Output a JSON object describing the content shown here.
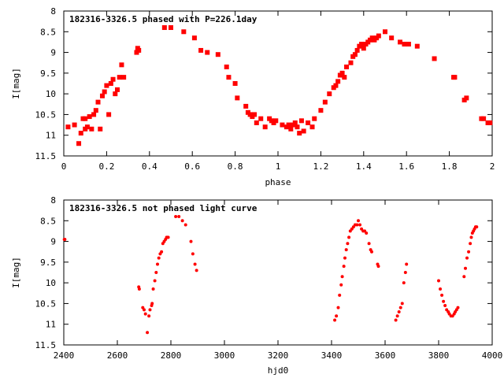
{
  "colors": {
    "marker": "#ff0000",
    "axes": "#000000",
    "background": "#ffffff"
  },
  "chart_data": [
    {
      "type": "scatter",
      "title": "182316-3326.5 phased with P=226.1day",
      "xlabel": "phase",
      "ylabel": "I[mag]",
      "xlim": [
        0,
        2
      ],
      "ylim": [
        11.5,
        8
      ],
      "y_inverted": true,
      "grid": false,
      "legend": "none",
      "marker": "square",
      "xticks": [
        "0",
        "0.2",
        "0.4",
        "0.6",
        "0.8",
        "1",
        "1.2",
        "1.4",
        "1.6",
        "1.8",
        "2"
      ],
      "yticks": [
        "8",
        "8.5",
        "9",
        "9.5",
        "10",
        "10.5",
        "11",
        "11.5"
      ],
      "series": [
        {
          "x": [
            0.02,
            0.05,
            0.07,
            0.08,
            0.09,
            0.1,
            0.1,
            0.11,
            0.12,
            0.13,
            0.14,
            0.15,
            0.16,
            0.17,
            0.18,
            0.19,
            0.2,
            0.21,
            0.22,
            0.23,
            0.24,
            0.25,
            0.26,
            0.27,
            0.28,
            0.34,
            0.345,
            0.35,
            0.47,
            0.5,
            0.56,
            0.61,
            0.64,
            0.67,
            0.72,
            0.76,
            0.77,
            0.8,
            0.81,
            0.85,
            0.86,
            0.87,
            0.88,
            0.89,
            0.9,
            0.92,
            0.94,
            0.96,
            0.97,
            0.98,
            0.99,
            1.02,
            1.04,
            1.05,
            1.06,
            1.07,
            1.08,
            1.09,
            1.1,
            1.11,
            1.12,
            1.14,
            1.16,
            1.17,
            1.2,
            1.22,
            1.24,
            1.26,
            1.27,
            1.28,
            1.29,
            1.3,
            1.31,
            1.32,
            1.34,
            1.35,
            1.36,
            1.37,
            1.38,
            1.39,
            1.4,
            1.41,
            1.42,
            1.43,
            1.44,
            1.45,
            1.46,
            1.47,
            1.5,
            1.53,
            1.57,
            1.59,
            1.61,
            1.65,
            1.73,
            1.82,
            1.825,
            1.87,
            1.88,
            1.95,
            1.96,
            1.98,
            1.99
          ],
          "y": [
            10.8,
            10.75,
            11.2,
            10.95,
            10.6,
            10.85,
            10.6,
            10.8,
            10.55,
            10.85,
            10.5,
            10.4,
            10.2,
            10.85,
            10.05,
            9.95,
            9.8,
            10.5,
            9.75,
            9.65,
            10.0,
            9.9,
            9.6,
            9.3,
            9.6,
            9.0,
            8.9,
            8.95,
            8.4,
            8.4,
            8.5,
            8.65,
            8.95,
            9.0,
            9.05,
            9.35,
            9.6,
            9.75,
            10.1,
            10.3,
            10.45,
            10.5,
            10.55,
            10.5,
            10.7,
            10.6,
            10.8,
            10.6,
            10.65,
            10.7,
            10.65,
            10.75,
            10.8,
            10.75,
            10.85,
            10.75,
            10.7,
            10.8,
            10.95,
            10.65,
            10.9,
            10.7,
            10.8,
            10.6,
            10.4,
            10.2,
            10.0,
            9.85,
            9.8,
            9.7,
            9.55,
            9.5,
            9.6,
            9.35,
            9.25,
            9.1,
            9.05,
            8.95,
            8.85,
            8.8,
            8.9,
            8.8,
            8.75,
            8.7,
            8.65,
            8.7,
            8.65,
            8.6,
            8.5,
            8.65,
            8.75,
            8.8,
            8.8,
            8.85,
            9.15,
            9.6,
            9.6,
            10.15,
            10.1,
            10.6,
            10.6,
            10.7,
            10.7
          ]
        }
      ]
    },
    {
      "type": "scatter",
      "title": "182316-3326.5 not phased light curve",
      "xlabel": "hjd0",
      "ylabel": "I[mag]",
      "xlim": [
        2400,
        4000
      ],
      "ylim": [
        11.5,
        8
      ],
      "y_inverted": true,
      "grid": false,
      "legend": "none",
      "marker": "dot",
      "xticks": [
        "2400",
        "2600",
        "2800",
        "3000",
        "3200",
        "3400",
        "3600",
        "3800",
        "4000"
      ],
      "yticks": [
        "8",
        "8.5",
        "9",
        "9.5",
        "10",
        "10.5",
        "11",
        "11.5"
      ],
      "series": [
        {
          "x": [
            2402,
            2404,
            2680,
            2682,
            2695,
            2700,
            2705,
            2712,
            2718,
            2722,
            2728,
            2730,
            2734,
            2740,
            2745,
            2750,
            2755,
            2760,
            2765,
            2770,
            2775,
            2780,
            2784,
            2787,
            2790,
            2818,
            2830,
            2843,
            2855,
            2875,
            2882,
            2890,
            2896,
            3412,
            3418,
            3425,
            3430,
            3436,
            3440,
            3446,
            3450,
            3455,
            3460,
            3465,
            3470,
            3476,
            3482,
            3488,
            3495,
            3500,
            3506,
            3512,
            3518,
            3524,
            3530,
            3540,
            3546,
            3550,
            3572,
            3575,
            3640,
            3646,
            3652,
            3658,
            3664,
            3670,
            3676,
            3680,
            3800,
            3806,
            3812,
            3818,
            3824,
            3830,
            3836,
            3840,
            3846,
            3852,
            3858,
            3862,
            3867,
            3872,
            3895,
            3900,
            3906,
            3912,
            3918,
            3922,
            3926,
            3930,
            3934,
            3938,
            3942
          ],
          "y": [
            8.95,
            8.95,
            10.1,
            10.15,
            10.6,
            10.65,
            10.75,
            11.2,
            10.8,
            10.65,
            10.55,
            10.5,
            10.15,
            9.95,
            9.75,
            9.55,
            9.4,
            9.3,
            9.25,
            9.05,
            9.0,
            8.95,
            8.9,
            8.9,
            8.9,
            8.4,
            8.4,
            8.5,
            8.6,
            9.0,
            9.3,
            9.55,
            9.7,
            10.9,
            10.8,
            10.6,
            10.3,
            10.05,
            9.85,
            9.6,
            9.4,
            9.2,
            9.05,
            8.9,
            8.75,
            8.7,
            8.65,
            8.6,
            8.6,
            8.5,
            8.6,
            8.7,
            8.75,
            8.75,
            8.8,
            9.05,
            9.2,
            9.25,
            9.55,
            9.6,
            10.9,
            10.8,
            10.7,
            10.6,
            10.5,
            10.0,
            9.75,
            9.55,
            9.95,
            10.15,
            10.3,
            10.45,
            10.55,
            10.65,
            10.7,
            10.75,
            10.8,
            10.8,
            10.75,
            10.7,
            10.65,
            10.6,
            9.85,
            9.65,
            9.4,
            9.25,
            9.05,
            8.9,
            8.8,
            8.75,
            8.7,
            8.65,
            8.65
          ]
        }
      ]
    }
  ]
}
